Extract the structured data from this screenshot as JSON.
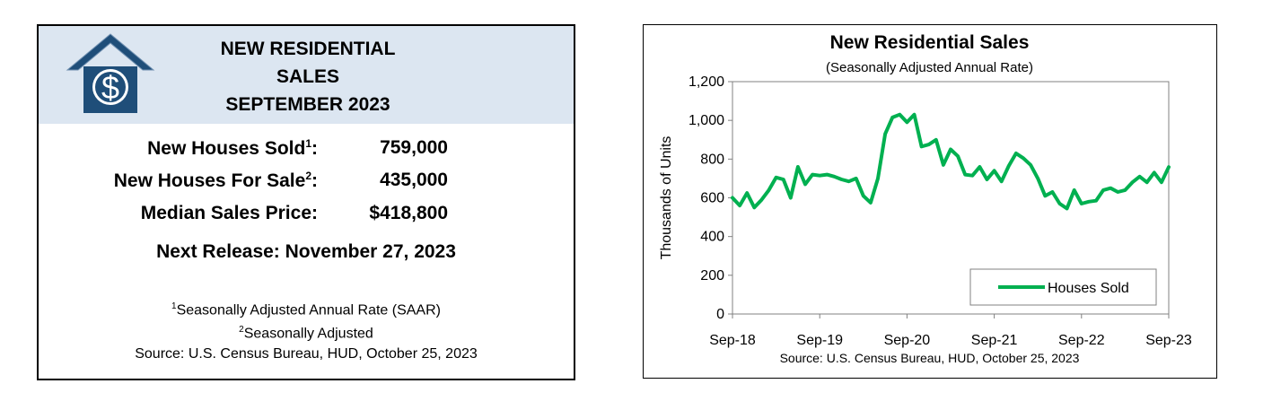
{
  "summary": {
    "title_lines": [
      "NEW RESIDENTIAL",
      "SALES",
      "SEPTEMBER 2023"
    ],
    "stats": [
      {
        "label": "New Houses Sold",
        "sup": "1",
        "suffix": ":",
        "value": "759,000"
      },
      {
        "label": "New Houses For Sale",
        "sup": "2",
        "suffix": ":",
        "value": "435,000"
      },
      {
        "label": "Median Sales Price",
        "sup": "",
        "suffix": ":",
        "value": "$418,800"
      }
    ],
    "next_release": "Next Release:  November 27, 2023",
    "footnotes": [
      {
        "sup": "1",
        "text": "Seasonally Adjusted Annual Rate (SAAR)"
      },
      {
        "sup": "2",
        "text": "Seasonally Adjusted"
      },
      {
        "sup": "",
        "text": "Source:  U.S. Census Bureau, HUD, October 25, 2023"
      }
    ],
    "logo": {
      "icon": "house-dollar-icon",
      "color": "#1f4e79",
      "glyph": "$"
    }
  },
  "chart_data": {
    "type": "line",
    "title": "New Residential Sales",
    "subtitle": "(Seasonally Adjusted Annual Rate)",
    "ylabel": "Thousands of Units",
    "source": "Source:  U.S. Census Bureau, HUD, October 25, 2023",
    "ylim": [
      0,
      1200
    ],
    "yticks": [
      0,
      200,
      400,
      600,
      800,
      1000,
      1200
    ],
    "ytick_labels": [
      "0",
      "200",
      "400",
      "600",
      "800",
      "1,000",
      "1,200"
    ],
    "xtick_labels": [
      "Sep-18",
      "Sep-19",
      "Sep-20",
      "Sep-21",
      "Sep-22",
      "Sep-23"
    ],
    "x_start": "Sep-18",
    "x_end": "Sep-23",
    "grid": false,
    "legend": {
      "placement": "bottom-right"
    },
    "series": [
      {
        "name": "Houses Sold",
        "color": "#00b050",
        "values": [
          600,
          560,
          625,
          550,
          590,
          640,
          705,
          695,
          600,
          760,
          670,
          720,
          715,
          720,
          710,
          695,
          685,
          700,
          610,
          575,
          700,
          930,
          1015,
          1030,
          990,
          1030,
          865,
          875,
          900,
          770,
          850,
          815,
          720,
          715,
          760,
          695,
          740,
          685,
          765,
          830,
          805,
          770,
          700,
          610,
          630,
          570,
          545,
          640,
          570,
          580,
          585,
          640,
          650,
          630,
          640,
          680,
          710,
          680,
          730,
          680,
          759
        ]
      }
    ]
  }
}
